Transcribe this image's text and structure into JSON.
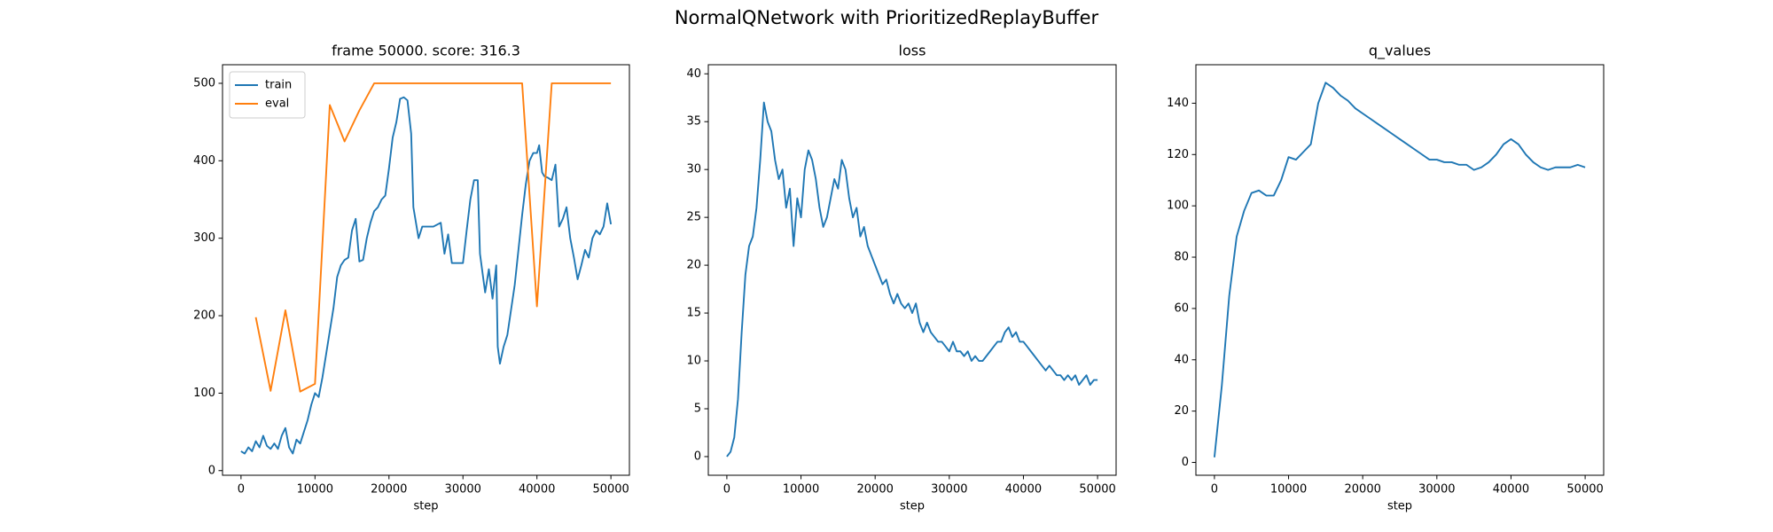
{
  "title": "NormalQNetwork with PrioritizedReplayBuffer",
  "chart_data": [
    {
      "type": "line",
      "title": "frame 50000. score: 316.3",
      "x_label": "step",
      "xlim": [
        -2500,
        52500
      ],
      "xticks": [
        0,
        10000,
        20000,
        30000,
        40000,
        50000
      ],
      "ylim": [
        -6,
        524
      ],
      "yticks": [
        0,
        100,
        200,
        300,
        400,
        500
      ],
      "legend": "upper left",
      "grid": false,
      "series": [
        {
          "name": "train",
          "color": "#1f77b4",
          "x": [
            0,
            500,
            1000,
            1500,
            2000,
            2500,
            3000,
            3500,
            4000,
            4500,
            5000,
            5500,
            6000,
            6500,
            7000,
            7500,
            8000,
            8500,
            9000,
            9500,
            10000,
            10500,
            11000,
            11500,
            12000,
            12500,
            13000,
            13500,
            14000,
            14500,
            15000,
            15500,
            16000,
            16500,
            17000,
            17500,
            18000,
            18500,
            19000,
            19500,
            20000,
            20500,
            21000,
            21500,
            22000,
            22500,
            23000,
            23300,
            24000,
            24500,
            25000,
            26000,
            27000,
            27500,
            28000,
            28500,
            29000,
            30000,
            30500,
            31000,
            31500,
            32000,
            32300,
            33000,
            33500,
            34000,
            34500,
            34700,
            35000,
            35500,
            36000,
            37000,
            38000,
            38500,
            39000,
            39500,
            40000,
            40300,
            40700,
            41000,
            41500,
            42000,
            42500,
            43000,
            43500,
            44000,
            44500,
            45000,
            45500,
            46000,
            46500,
            47000,
            47500,
            48000,
            48500,
            49000,
            49500,
            50000
          ],
          "values": [
            25,
            22,
            30,
            25,
            38,
            30,
            45,
            32,
            28,
            35,
            28,
            45,
            55,
            30,
            22,
            40,
            35,
            50,
            65,
            85,
            100,
            95,
            120,
            150,
            180,
            210,
            250,
            265,
            272,
            275,
            310,
            325,
            270,
            272,
            300,
            320,
            335,
            340,
            350,
            355,
            390,
            430,
            450,
            480,
            482,
            478,
            435,
            340,
            300,
            315,
            315,
            315,
            320,
            280,
            305,
            268,
            268,
            268,
            310,
            350,
            375,
            375,
            280,
            230,
            260,
            222,
            265,
            160,
            138,
            160,
            175,
            240,
            330,
            370,
            400,
            410,
            410,
            420,
            385,
            380,
            378,
            375,
            395,
            315,
            325,
            340,
            300,
            275,
            247,
            265,
            285,
            275,
            300,
            310,
            305,
            315,
            345,
            318
          ]
        },
        {
          "name": "eval",
          "color": "#ff7f0e",
          "x": [
            2000,
            4000,
            6000,
            8000,
            10000,
            12000,
            14000,
            16000,
            18000,
            20000,
            22000,
            24000,
            26000,
            28000,
            30000,
            32000,
            34000,
            36000,
            38000,
            40000,
            42000,
            44000,
            46000,
            48000,
            50000
          ],
          "values": [
            198,
            103,
            207,
            102,
            112,
            472,
            425,
            465,
            500,
            500,
            500,
            500,
            500,
            500,
            500,
            500,
            500,
            500,
            500,
            212,
            500,
            500,
            500,
            500,
            500
          ]
        }
      ]
    },
    {
      "type": "line",
      "title": "loss",
      "x_label": "step",
      "xlim": [
        -2500,
        52500
      ],
      "xticks": [
        0,
        10000,
        20000,
        30000,
        40000,
        50000
      ],
      "ylim": [
        -1.95,
        40.95
      ],
      "yticks": [
        0,
        5,
        10,
        15,
        20,
        25,
        30,
        35,
        40
      ],
      "grid": false,
      "x": [
        0,
        500,
        1000,
        1500,
        2000,
        2500,
        3000,
        3500,
        4000,
        4500,
        5000,
        5500,
        6000,
        6500,
        7000,
        7500,
        8000,
        8500,
        9000,
        9500,
        10000,
        10500,
        11000,
        11500,
        12000,
        12500,
        13000,
        13500,
        14000,
        14500,
        15000,
        15500,
        16000,
        16500,
        17000,
        17500,
        18000,
        18500,
        19000,
        19500,
        20000,
        20500,
        21000,
        21500,
        22000,
        22500,
        23000,
        23500,
        24000,
        24500,
        25000,
        25500,
        26000,
        26500,
        27000,
        27500,
        28000,
        28500,
        29000,
        29500,
        30000,
        30500,
        31000,
        31500,
        32000,
        32500,
        33000,
        33500,
        34000,
        34500,
        35000,
        35500,
        36000,
        36500,
        37000,
        37500,
        38000,
        38500,
        39000,
        39500,
        40000,
        40500,
        41000,
        41500,
        42000,
        42500,
        43000,
        43500,
        44000,
        44500,
        45000,
        45500,
        46000,
        46500,
        47000,
        47500,
        48000,
        48500,
        49000,
        49500,
        50000
      ],
      "series": [
        {
          "color": "#1f77b4",
          "values": [
            0,
            0.5,
            2,
            6,
            13,
            19,
            22,
            23,
            26,
            31,
            37,
            35,
            34,
            31,
            29,
            30,
            26,
            28,
            22,
            27,
            25,
            30,
            32,
            31,
            29,
            26,
            24,
            25,
            27,
            29,
            28,
            31,
            30,
            27,
            25,
            26,
            23,
            24,
            22,
            21,
            20,
            19,
            18,
            18.5,
            17,
            16,
            17,
            16,
            15.5,
            16,
            15,
            16,
            14,
            13,
            14,
            13,
            12.5,
            12,
            12,
            11.5,
            11,
            12,
            11,
            11,
            10.5,
            11,
            10,
            10.5,
            10,
            10,
            10.5,
            11,
            11.5,
            12,
            12,
            13,
            13.5,
            12.5,
            13,
            12,
            12,
            11.5,
            11,
            10.5,
            10,
            9.5,
            9,
            9.5,
            9,
            8.5,
            8.5,
            8,
            8.5,
            8,
            8.5,
            7.5,
            8,
            8.5,
            7.5,
            8,
            8
          ]
        }
      ]
    },
    {
      "type": "line",
      "title": "q_values",
      "x_label": "step",
      "xlim": [
        -2500,
        52500
      ],
      "xticks": [
        0,
        10000,
        20000,
        30000,
        40000,
        50000
      ],
      "ylim": [
        -5,
        155
      ],
      "yticks": [
        0,
        20,
        40,
        60,
        80,
        100,
        120,
        140
      ],
      "grid": false,
      "x": [
        0,
        1000,
        2000,
        3000,
        4000,
        5000,
        6000,
        7000,
        8000,
        9000,
        10000,
        11000,
        12000,
        13000,
        14000,
        15000,
        16000,
        17000,
        18000,
        19000,
        20000,
        21000,
        22000,
        23000,
        24000,
        25000,
        26000,
        27000,
        28000,
        29000,
        30000,
        31000,
        32000,
        33000,
        34000,
        35000,
        36000,
        37000,
        38000,
        39000,
        40000,
        41000,
        42000,
        43000,
        44000,
        45000,
        46000,
        47000,
        48000,
        49000,
        50000
      ],
      "series": [
        {
          "color": "#1f77b4",
          "values": [
            2,
            30,
            65,
            88,
            98,
            105,
            106,
            104,
            104,
            110,
            119,
            118,
            121,
            124,
            140,
            148,
            146,
            143,
            141,
            138,
            136,
            134,
            132,
            130,
            128,
            126,
            124,
            122,
            120,
            118,
            118,
            117,
            117,
            116,
            116,
            114,
            115,
            117,
            120,
            124,
            126,
            124,
            120,
            117,
            115,
            114,
            115,
            115,
            115,
            116,
            115
          ]
        }
      ]
    }
  ]
}
